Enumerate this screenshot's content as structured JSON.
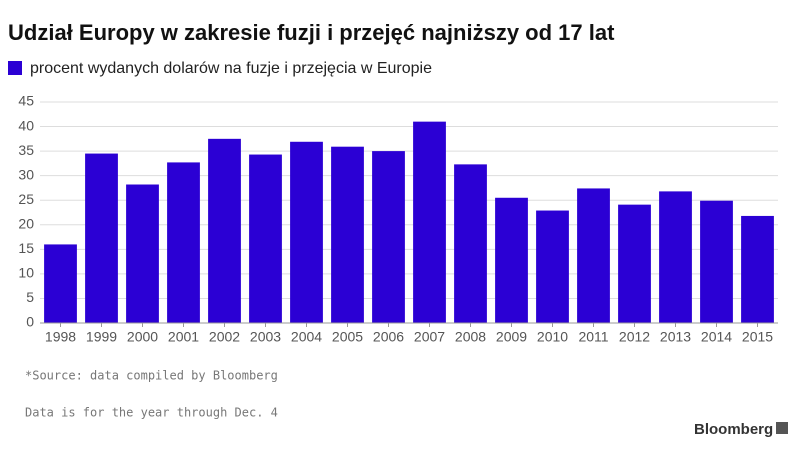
{
  "chart_data": {
    "type": "bar",
    "title": "Udział Europy w zakresie fuzji i przejęć najniższy od 17 lat",
    "categories": [
      "1998",
      "1999",
      "2000",
      "2001",
      "2002",
      "2003",
      "2004",
      "2005",
      "2006",
      "2007",
      "2008",
      "2009",
      "2010",
      "2011",
      "2012",
      "2013",
      "2014",
      "2015"
    ],
    "series": [
      {
        "name": "procent wydanych dolarów na fuzje i przejęcia w Europie",
        "color": "#2b00d4",
        "values": [
          16,
          34.5,
          28.2,
          32.7,
          37.5,
          34.3,
          36.9,
          35.9,
          35,
          41,
          32.3,
          25.5,
          22.9,
          27.4,
          24.1,
          26.8,
          24.9,
          21.8
        ]
      }
    ],
    "ylim": [
      0,
      45
    ],
    "yticks": [
      0,
      5,
      10,
      15,
      20,
      25,
      30,
      35,
      40,
      45
    ],
    "grid": true,
    "source": "*Source: data compiled by Bloomberg",
    "note": "Data is for the year through Dec. 4",
    "brand": "Bloomberg"
  }
}
